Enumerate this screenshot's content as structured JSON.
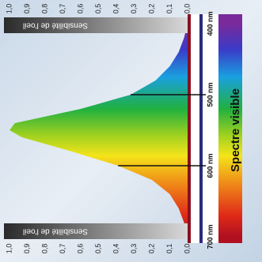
{
  "chart_data": {
    "type": "area",
    "title": "Spectre visible",
    "y_label": "Sensibilité de l'oeil",
    "x": [
      400,
      420,
      440,
      460,
      480,
      500,
      520,
      540,
      550,
      560,
      580,
      600,
      620,
      640,
      660,
      680,
      700
    ],
    "values": [
      0.0,
      0.02,
      0.05,
      0.1,
      0.18,
      0.32,
      0.6,
      0.97,
      1.0,
      0.93,
      0.65,
      0.39,
      0.2,
      0.1,
      0.05,
      0.02,
      0.0
    ],
    "xlim": [
      400,
      700
    ],
    "xticks": [
      {
        "value": 400,
        "label": "400 nm"
      },
      {
        "value": 500,
        "label": "500 nm"
      },
      {
        "value": 600,
        "label": "600 nm"
      },
      {
        "value": 700,
        "label": "700 nm"
      }
    ],
    "ylim": [
      0,
      1
    ],
    "yticks": [
      {
        "value": 1,
        "label": "1,0"
      },
      {
        "value": 0.9,
        "label": "0,9"
      },
      {
        "value": 0.8,
        "label": "0,8"
      },
      {
        "value": 0.7,
        "label": "0,7"
      },
      {
        "value": 0.6,
        "label": "0,6"
      },
      {
        "value": 0.5,
        "label": "0,5"
      },
      {
        "value": 0.4,
        "label": "0,4"
      },
      {
        "value": 0.3,
        "label": "0,3"
      },
      {
        "value": 0.2,
        "label": "0,2"
      },
      {
        "value": 0.1,
        "label": "0,1"
      },
      {
        "value": 0,
        "label": "0,0"
      }
    ]
  }
}
